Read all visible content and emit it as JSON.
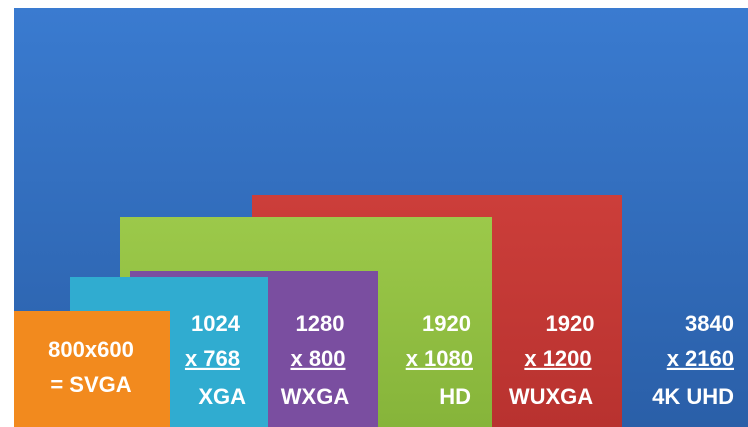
{
  "resolutions": [
    {
      "lines": [
        "800x600",
        "= SVGA"
      ]
    },
    {
      "lines": [
        "1024",
        "x 768",
        "XGA"
      ]
    },
    {
      "lines": [
        "1280",
        "x 800",
        "WXGA"
      ]
    },
    {
      "lines": [
        "1920",
        "x 1080",
        "HD"
      ]
    },
    {
      "lines": [
        "1920",
        "x 1200",
        "WUXGA"
      ]
    },
    {
      "lines": [
        "3840",
        "x 2160",
        "4K UHD"
      ]
    }
  ]
}
